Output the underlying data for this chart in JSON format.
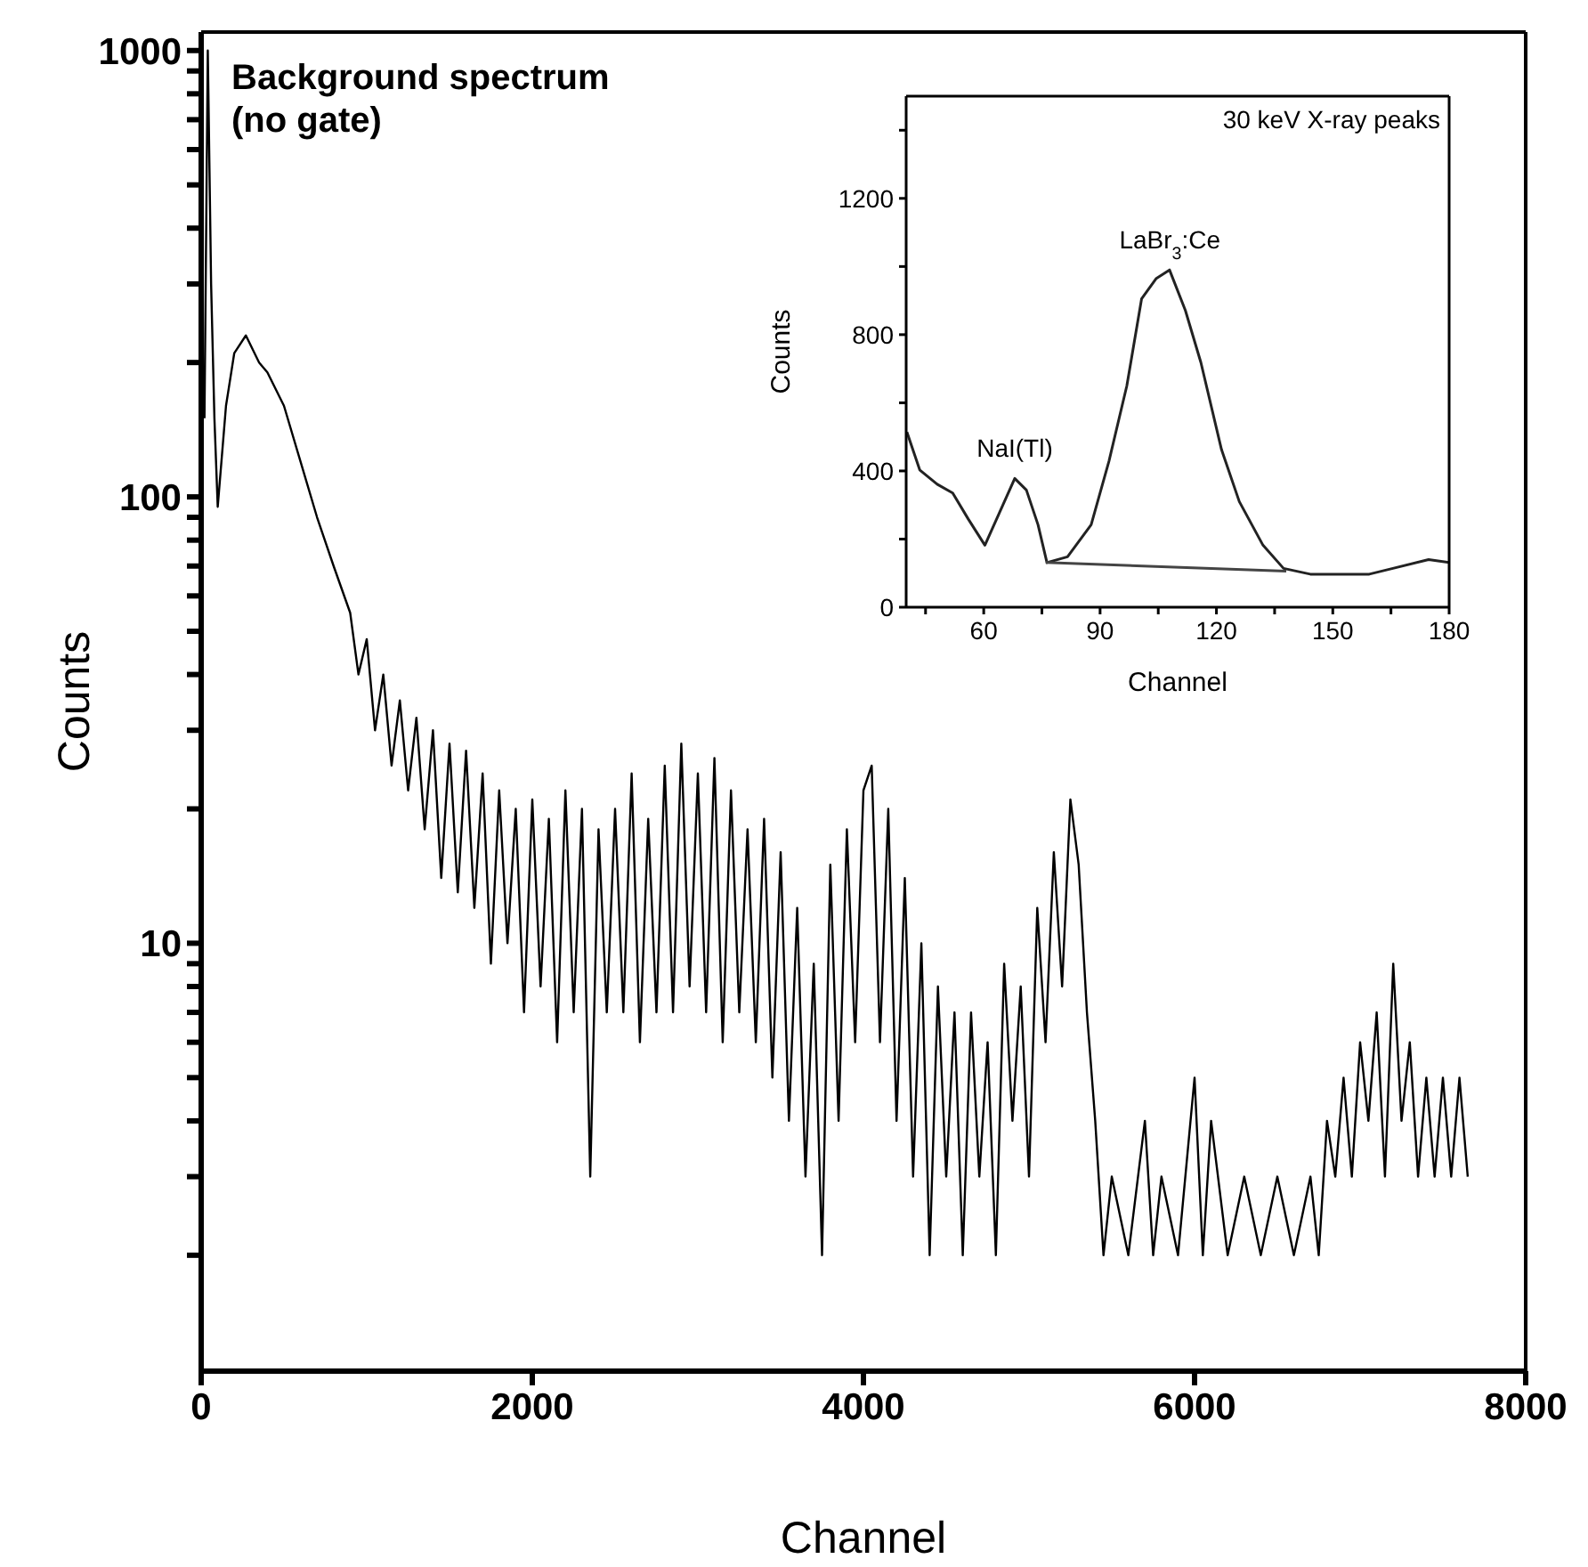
{
  "chart_data": [
    {
      "type": "line",
      "xlabel": "Channel",
      "ylabel": "Counts",
      "log": "y",
      "xlim": [
        0,
        8000
      ],
      "xticks": [
        0,
        2000,
        4000,
        6000,
        8000
      ],
      "ylim": [
        1.1,
        1100
      ],
      "yticks": [
        {
          "value": 2,
          "label": null
        },
        {
          "value": 3,
          "label": null
        },
        {
          "value": 4,
          "label": null
        },
        {
          "value": 5,
          "label": null
        },
        {
          "value": 6,
          "label": null
        },
        {
          "value": 7,
          "label": null
        },
        {
          "value": 8,
          "label": null
        },
        {
          "value": 9,
          "label": null
        },
        10,
        {
          "value": 20,
          "label": null
        },
        {
          "value": 30,
          "label": null
        },
        {
          "value": 40,
          "label": null
        },
        {
          "value": 50,
          "label": null
        },
        {
          "value": 60,
          "label": null
        },
        {
          "value": 70,
          "label": null
        },
        {
          "value": 80,
          "label": null
        },
        {
          "value": 90,
          "label": null
        },
        100,
        {
          "value": 200,
          "label": null
        },
        {
          "value": 300,
          "label": null
        },
        {
          "value": 400,
          "label": null
        },
        {
          "value": 500,
          "label": null
        },
        {
          "value": 600,
          "label": null
        },
        {
          "value": 700,
          "label": null
        },
        {
          "value": 800,
          "label": null
        },
        {
          "value": 900,
          "label": null
        },
        1000
      ],
      "annotations": [
        "Background spectrum (no gate)"
      ],
      "series": [
        {
          "color": "#000000",
          "x": [
            20,
            40,
            60,
            80,
            100,
            150,
            200,
            270,
            350,
            400,
            500,
            600,
            700,
            800,
            900,
            950,
            1000,
            1050,
            1100,
            1150,
            1200,
            1250,
            1300,
            1350,
            1400,
            1450,
            1500,
            1550,
            1600,
            1650,
            1700,
            1750,
            1800,
            1850,
            1900,
            1950,
            2000,
            2050,
            2100,
            2150,
            2200,
            2250,
            2300,
            2350,
            2400,
            2450,
            2500,
            2550,
            2600,
            2650,
            2700,
            2750,
            2800,
            2850,
            2900,
            2950,
            3000,
            3050,
            3100,
            3150,
            3200,
            3250,
            3300,
            3350,
            3400,
            3450,
            3500,
            3550,
            3600,
            3650,
            3700,
            3750,
            3800,
            3850,
            3900,
            3950,
            4000,
            4050,
            4100,
            4150,
            4200,
            4250,
            4300,
            4350,
            4400,
            4450,
            4500,
            4550,
            4600,
            4650,
            4700,
            4750,
            4800,
            4850,
            4900,
            4950,
            5000,
            5050,
            5100,
            5150,
            5200,
            5250,
            5300,
            5350,
            5400,
            5450,
            5500,
            5600,
            5700,
            5750,
            5800,
            5900,
            6000,
            6050,
            6100,
            6200,
            6300,
            6400,
            6500,
            6600,
            6700,
            6750,
            6800,
            6850,
            6900,
            6950,
            7000,
            7050,
            7100,
            7150,
            7200,
            7250,
            7300,
            7350,
            7400,
            7450,
            7500,
            7550,
            7600,
            7650
          ],
          "values": [
            150,
            1000,
            300,
            150,
            95,
            160,
            210,
            230,
            200,
            190,
            160,
            120,
            90,
            70,
            55,
            40,
            48,
            30,
            40,
            25,
            35,
            22,
            32,
            18,
            30,
            14,
            28,
            13,
            27,
            12,
            24,
            9,
            22,
            10,
            20,
            7,
            21,
            8,
            19,
            6,
            22,
            7,
            20,
            3,
            18,
            7,
            20,
            7,
            24,
            6,
            19,
            7,
            25,
            7,
            28,
            8,
            24,
            7,
            26,
            6,
            22,
            7,
            18,
            6,
            19,
            5,
            16,
            4,
            12,
            3,
            9,
            2,
            15,
            4,
            18,
            6,
            22,
            25,
            6,
            20,
            4,
            14,
            3,
            10,
            2,
            8,
            3,
            7,
            2,
            7,
            3,
            6,
            2,
            9,
            4,
            8,
            3,
            12,
            6,
            16,
            8,
            21,
            15,
            7,
            4,
            2,
            3,
            2,
            4,
            2,
            3,
            2,
            5,
            2,
            4,
            2,
            3,
            2,
            3,
            2,
            3,
            2,
            4,
            3,
            5,
            3,
            6,
            4,
            7,
            3,
            9,
            4,
            6,
            3,
            5,
            3,
            5,
            3,
            5,
            3
          ]
        }
      ]
    },
    {
      "type": "line",
      "xlabel": "Channel",
      "ylabel": "Counts",
      "xlim": [
        40,
        180
      ],
      "xticks": [
        {
          "value": 45,
          "label": null
        },
        60,
        {
          "value": 75,
          "label": null
        },
        90,
        {
          "value": 105,
          "label": null
        },
        120,
        {
          "value": 135,
          "label": null
        },
        150,
        {
          "value": 165,
          "label": null
        },
        180
      ],
      "ylim": [
        0,
        1500
      ],
      "yticks": [
        0,
        {
          "value": 200,
          "label": null
        },
        400,
        {
          "value": 600,
          "label": null
        },
        800,
        {
          "value": 1000,
          "label": null
        },
        1200,
        {
          "value": 1400,
          "label": null
        }
      ],
      "annotations": [
        "30 keV X-ray peaks",
        {
          "text": "NaI(Tl)",
          "x": 68,
          "y": 378
        },
        {
          "text": "LaBr$_{3}$:Ce",
          "x": 108,
          "y": 990
        }
      ],
      "series": [
        {
          "color": "#222222",
          "x": [
            40.2,
            43.5,
            48,
            52,
            56,
            60.3,
            64,
            68,
            71,
            74,
            76.3,
            81.6,
            87.7,
            92.3,
            96.9,
            100.7,
            104.5,
            107.9,
            112,
            116,
            121.3,
            125.9,
            132,
            137.3,
            144.2,
            151.8,
            159.4,
            165.5,
            174.7,
            180
          ],
          "values": [
            514,
            403,
            361,
            335,
            259,
            182,
            276,
            378,
            344,
            242,
            131,
            148,
            242,
            429,
            650,
            905,
            965,
            990,
            871,
            718,
            463,
            310,
            182,
            114,
            97,
            97,
            97,
            114,
            140,
            131
          ]
        },
        {
          "type": "line",
          "color": "#444444",
          "x": [
            76,
            138
          ],
          "values": [
            131,
            106
          ]
        }
      ]
    }
  ]
}
